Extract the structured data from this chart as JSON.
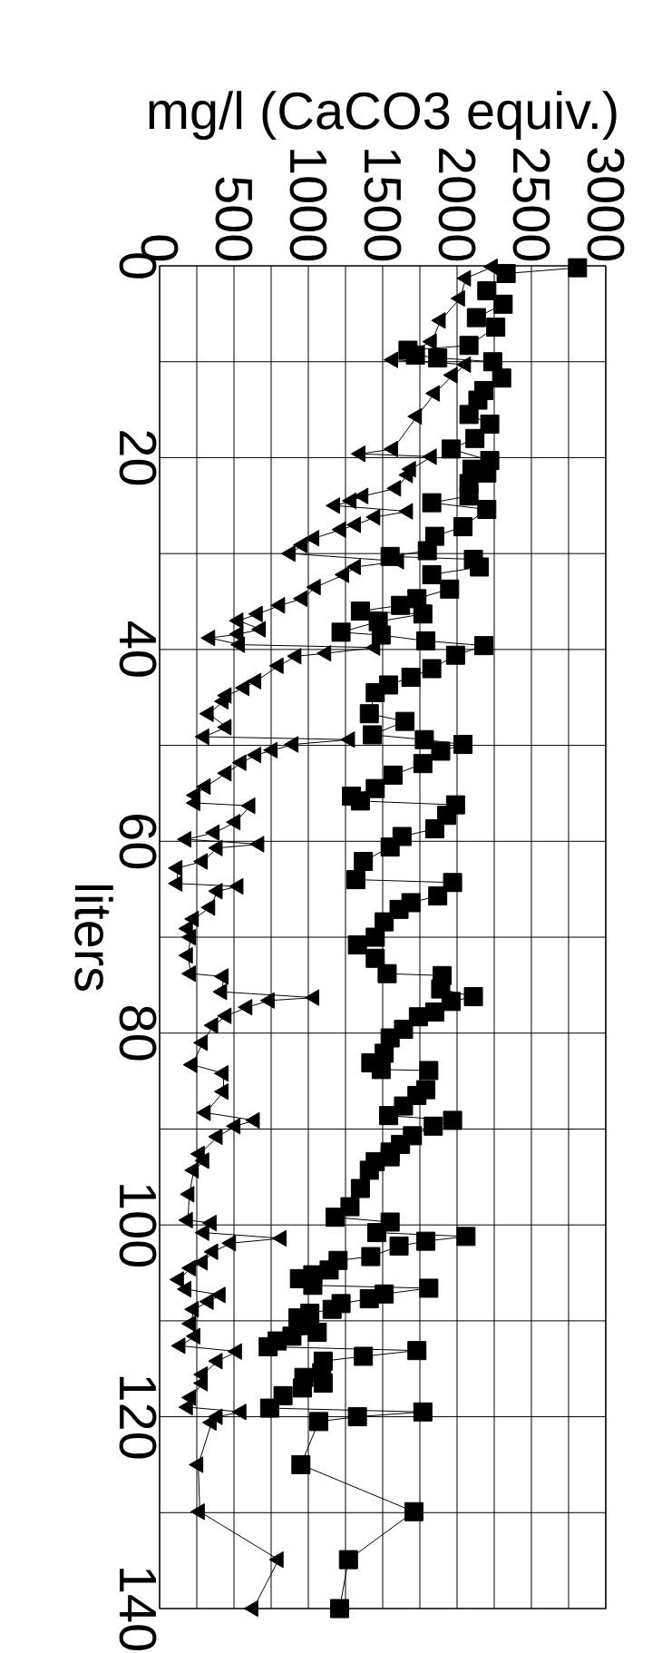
{
  "chart_data": {
    "type": "line",
    "xlabel": "mg/l (CaCO3 equiv.)",
    "ylabel": "liters",
    "xlim": [
      0,
      3000
    ],
    "ylim": [
      140,
      0
    ],
    "xticks": [
      0,
      {
        "value": 250,
        "label": null
      },
      500,
      {
        "value": 750,
        "label": null
      },
      1000,
      {
        "value": 1250,
        "label": null
      },
      1500,
      {
        "value": 1750,
        "label": null
      },
      2000,
      {
        "value": 2250,
        "label": null
      },
      2500,
      {
        "value": 2750,
        "label": null
      },
      3000
    ],
    "yticks": [
      0,
      {
        "value": 10,
        "label": null
      },
      20,
      {
        "value": 30,
        "label": null
      },
      40,
      {
        "value": 50,
        "label": null
      },
      60,
      {
        "value": 70,
        "label": null
      },
      80,
      {
        "value": 90,
        "label": null
      },
      100,
      {
        "value": 110,
        "label": null
      },
      120,
      {
        "value": 130,
        "label": null
      },
      140
    ],
    "grid": true,
    "series": [
      {
        "color": "#000000",
        "marker": "square",
        "values": [
          0.2,
          0.8,
          2.6,
          4,
          5.4,
          6.4,
          8.3,
          8.8,
          9.3,
          9.6,
          10,
          11.7,
          13,
          14,
          15.5,
          16.5,
          18,
          19.1,
          20.3,
          21.2,
          21.6,
          22.7,
          24,
          24.7,
          25.4,
          27.2,
          28.2,
          29.7,
          30.3,
          30.6,
          31.4,
          32.2,
          33.7,
          34.7,
          35.4,
          36,
          36.3,
          37.1,
          38.2,
          38.5,
          39.1,
          39.6,
          40.6,
          42,
          42.9,
          43.7,
          44.5,
          46.7,
          47.5,
          48.9,
          49.4,
          49.9,
          50.6,
          51.9,
          53.1,
          54.5,
          55.3,
          55.8,
          56.2,
          57.3,
          58.7,
          59.5,
          60.6,
          62.1,
          64,
          64.3,
          65.7,
          66.4,
          67.1,
          68.4,
          70,
          70.8,
          72.2,
          73.8,
          74,
          75.4,
          76.2,
          76.7,
          77.8,
          78.3,
          79.6,
          80.5,
          82.1,
          83.1,
          83.8,
          83.9,
          85.9,
          86.5,
          87.6,
          88.6,
          89.1,
          89.7,
          90.7,
          91.6,
          92.4,
          92.9,
          93.4,
          94.3,
          96.2,
          98.1,
          99.2,
          99.7,
          100.8,
          101.2,
          101.7,
          102.2,
          103.3,
          103.7,
          104.7,
          105.2,
          105.6,
          106.3,
          106.6,
          107.2,
          107.7,
          108.2,
          108.8,
          109.2,
          109.7,
          110.5,
          111.2,
          111.6,
          112.1,
          112.7,
          113.1,
          113.7,
          114.2,
          115.4,
          115.9,
          116.5,
          117,
          117.8,
          119.1,
          119.5,
          120,
          120.5,
          125,
          129.9,
          134.9,
          140
        ],
        "x": [
          2810,
          2330,
          2200,
          2310,
          2130,
          2260,
          2080,
          1670,
          1720,
          1870,
          2240,
          2300,
          2180,
          2140,
          2080,
          2220,
          2120,
          1960,
          2220,
          2100,
          2200,
          2080,
          2080,
          1830,
          2200,
          2040,
          1850,
          1800,
          1550,
          2110,
          2150,
          1830,
          1950,
          1730,
          1620,
          1350,
          1770,
          1470,
          1220,
          1490,
          1790,
          2180,
          1990,
          1830,
          1690,
          1540,
          1450,
          1410,
          1650,
          1430,
          1780,
          2040,
          1890,
          1770,
          1570,
          1450,
          1290,
          1350,
          1990,
          1930,
          1850,
          1630,
          1550,
          1370,
          1320,
          1970,
          1870,
          1690,
          1610,
          1510,
          1450,
          1330,
          1450,
          1530,
          1900,
          1890,
          2110,
          1960,
          1850,
          1740,
          1640,
          1550,
          1510,
          1420,
          1490,
          1810,
          1790,
          1730,
          1640,
          1540,
          1970,
          1840,
          1700,
          1620,
          1550,
          1550,
          1450,
          1410,
          1350,
          1280,
          1180,
          1550,
          1460,
          2060,
          1790,
          1610,
          1420,
          1200,
          1140,
          1030,
          940,
          1030,
          1810,
          1510,
          1410,
          1220,
          1160,
          1010,
          930,
          950,
          1060,
          890,
          790,
          730,
          1730,
          1370,
          1100,
          1090,
          970,
          1100,
          960,
          830,
          740,
          1770,
          1330,
          1070,
          950,
          1710,
          1270,
          1210
        ]
      },
      {
        "color": "#000000",
        "marker": "triangle",
        "values": [
          0.1,
          1.3,
          3.4,
          5.7,
          7.9,
          9.8,
          10.3,
          11.4,
          13.3,
          15.7,
          19.1,
          19.6,
          19.9,
          21.2,
          21.8,
          23.2,
          24,
          24.5,
          25,
          25.6,
          26.2,
          27,
          27.5,
          28.4,
          29.1,
          30,
          30.8,
          31.4,
          32.2,
          33.5,
          34.7,
          35.4,
          36.3,
          37,
          37.9,
          38.4,
          38.8,
          39.5,
          39.8,
          40.4,
          40.7,
          41.7,
          43.3,
          44,
          44.8,
          45.4,
          46.7,
          48.1,
          49.1,
          49.4,
          49.9,
          50.5,
          51,
          51.8,
          52.9,
          54.3,
          55.2,
          56,
          56.3,
          58,
          59.1,
          59.8,
          60.3,
          60.7,
          62.1,
          62.8,
          64.4,
          64.7,
          65.2,
          66.9,
          68.1,
          69.1,
          70,
          71.9,
          73.8,
          74.1,
          75.7,
          76.3,
          76.6,
          77.3,
          78.2,
          79.2,
          81,
          83.3,
          84.2,
          86.1,
          88.3,
          89.1,
          89.7,
          90.8,
          92.6,
          93.3,
          94.3,
          96.8,
          99.5,
          99.8,
          100.8,
          101.4,
          101.9,
          102.8,
          103.9,
          104.5,
          105.7,
          106.7,
          107.3,
          108,
          108.8,
          110.3,
          111.6,
          112.6,
          113.2,
          114.2,
          115.6,
          116.5,
          118,
          119,
          119.5,
          120,
          120.6,
          125,
          129.9,
          134.9,
          140
        ],
        "x": [
          2240,
          2060,
          2020,
          1890,
          1830,
          1570,
          2060,
          1970,
          1850,
          1730,
          1570,
          1350,
          1830,
          1690,
          1670,
          1590,
          1370,
          1290,
          1180,
          1670,
          1450,
          1320,
          1220,
          1040,
          960,
          880,
          1610,
          1320,
          1240,
          1050,
          960,
          810,
          660,
          530,
          680,
          530,
          340,
          540,
          1450,
          1120,
          920,
          800,
          650,
          570,
          450,
          430,
          330,
          450,
          300,
          1280,
          900,
          760,
          650,
          550,
          450,
          310,
          240,
          240,
          610,
          510,
          370,
          180,
          670,
          390,
          290,
          120,
          120,
          530,
          390,
          340,
          230,
          190,
          210,
          190,
          210,
          430,
          420,
          1040,
          740,
          590,
          450,
          360,
          290,
          220,
          430,
          430,
          310,
          640,
          510,
          390,
          270,
          300,
          230,
          200,
          190,
          350,
          300,
          820,
          480,
          360,
          290,
          210,
          130,
          180,
          410,
          330,
          230,
          210,
          240,
          140,
          520,
          390,
          290,
          290,
          210,
          190,
          550,
          390,
          350,
          260,
          270,
          800,
          630
        ]
      }
    ]
  }
}
